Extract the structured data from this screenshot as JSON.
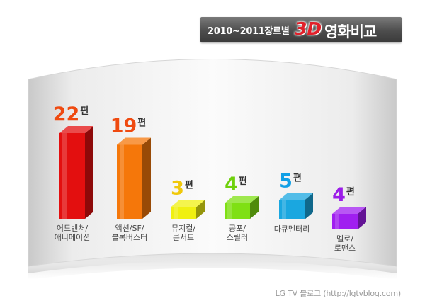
{
  "title": {
    "prefix": "2010~2011장르별",
    "highlight": "3D",
    "main": "영화비교"
  },
  "credit": "LG TV 블로그 (http://lgtvblog.com)",
  "chart_data": {
    "type": "bar",
    "title": "2010~2011장르별 3D 영화비교",
    "xlabel": "",
    "ylabel": "",
    "grid": false,
    "unit": "편",
    "categories": [
      [
        "어드벤처/",
        "애니메이션"
      ],
      [
        "액션/SF/",
        "블록버스터"
      ],
      [
        "뮤지컬/",
        "콘서트"
      ],
      [
        "공포/",
        "스릴러"
      ],
      [
        "다큐멘터리"
      ],
      [
        "멜로/",
        "로맨스"
      ]
    ],
    "values": [
      22,
      19,
      3,
      4,
      5,
      4
    ],
    "colors": [
      "#e30f0f",
      "#f5770a",
      "#f0f011",
      "#7fe014",
      "#1aa7e0",
      "#a01ff0"
    ],
    "value_colors": [
      "#ef4a10",
      "#ef4a10",
      "#f0c80a",
      "#6fd10c",
      "#11a0e6",
      "#9b1ce8"
    ]
  }
}
